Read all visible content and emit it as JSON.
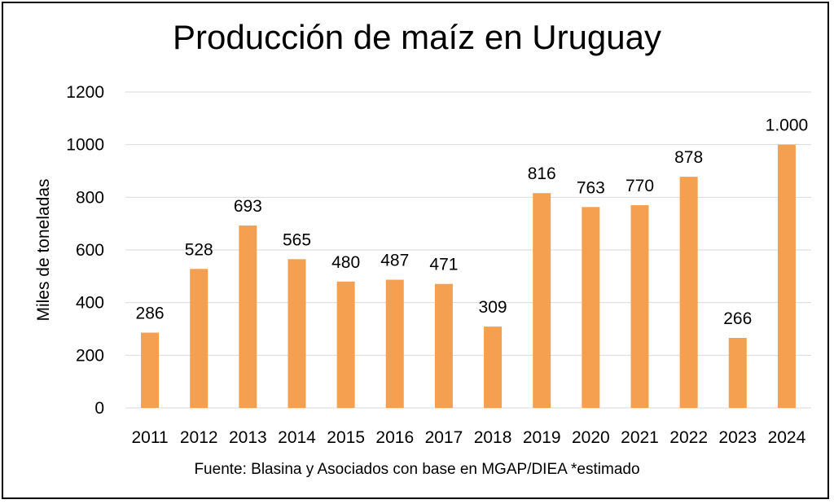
{
  "chart_data": {
    "type": "bar",
    "title": "Producción de maíz en Uruguay",
    "ylabel": "Miles de toneladas",
    "xlabel": "",
    "source": "Fuente: Blasina y Asociados con base en MGAP/DIEA *estimado",
    "categories": [
      "2011",
      "2012",
      "2013",
      "2014",
      "2015",
      "2016",
      "2017",
      "2018",
      "2019",
      "2020",
      "2021",
      "2022",
      "2023",
      "2024"
    ],
    "values": [
      286,
      528,
      693,
      565,
      480,
      487,
      471,
      309,
      816,
      763,
      770,
      878,
      266,
      1000
    ],
    "data_labels": [
      "286",
      "528",
      "693",
      "565",
      "480",
      "487",
      "471",
      "309",
      "816",
      "763",
      "770",
      "878",
      "266",
      "1.000"
    ],
    "yticks": [
      "0",
      "200",
      "400",
      "600",
      "800",
      "1000",
      "1200"
    ],
    "ylim": [
      0,
      1200
    ],
    "grid": true,
    "bar_color": "#f4a050",
    "grid_color": "#d9d9d9"
  }
}
